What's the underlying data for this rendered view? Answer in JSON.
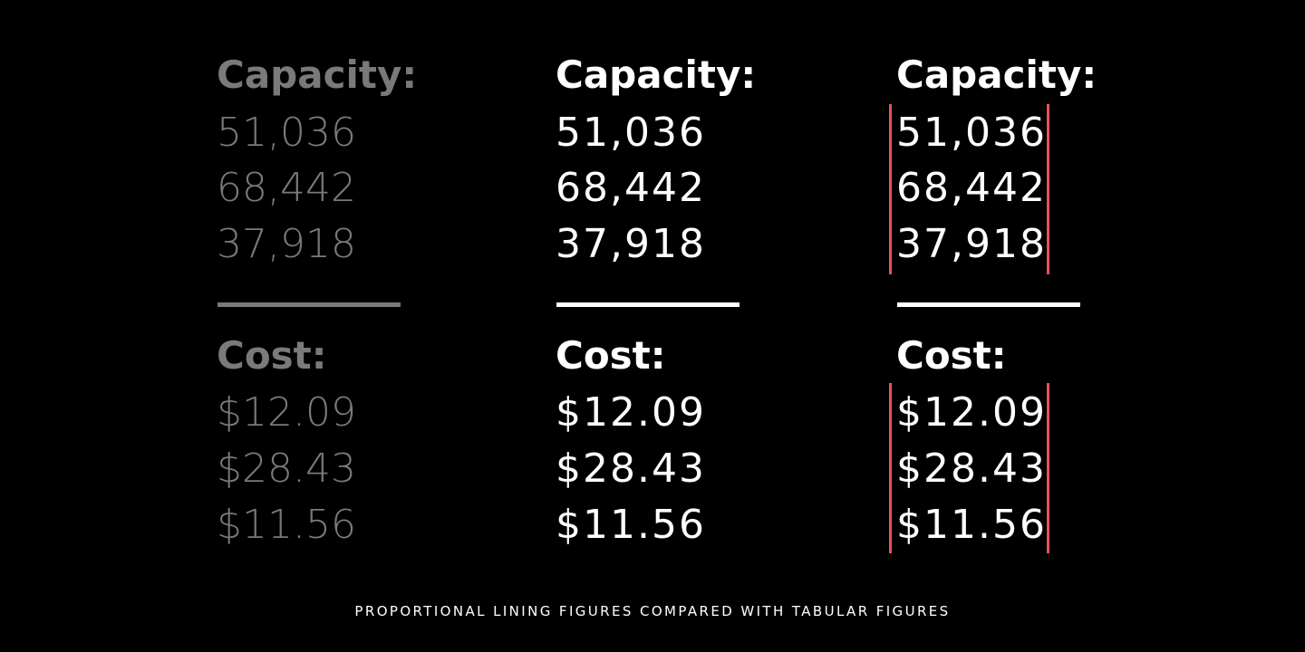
{
  "colors": {
    "background": "#000000",
    "muted": "#7a7a7a",
    "bright": "#ffffff",
    "guide": "#e8515b"
  },
  "columns": [
    {
      "variant": "proportional",
      "color_role": "muted",
      "capacity_label": "Capacity:",
      "capacity_values": [
        "51,036",
        "68,442",
        "37,918"
      ],
      "cost_label": "Cost:",
      "cost_values": [
        "$12.09",
        "$28.43",
        "$11.56"
      ]
    },
    {
      "variant": "tabular",
      "color_role": "bright",
      "capacity_label": "Capacity:",
      "capacity_values": [
        "51,036",
        "68,442",
        "37,918"
      ],
      "cost_label": "Cost:",
      "cost_values": [
        "$12.09",
        "$28.43",
        "$11.56"
      ]
    },
    {
      "variant": "tabular-with-guides",
      "color_role": "bright",
      "capacity_label": "Capacity:",
      "capacity_values": [
        "51,036",
        "68,442",
        "37,918"
      ],
      "cost_label": "Cost:",
      "cost_values": [
        "$12.09",
        "$28.43",
        "$11.56"
      ]
    }
  ],
  "caption": "PROPORTIONAL LINING FIGURES COMPARED WITH TABULAR FIGURES"
}
